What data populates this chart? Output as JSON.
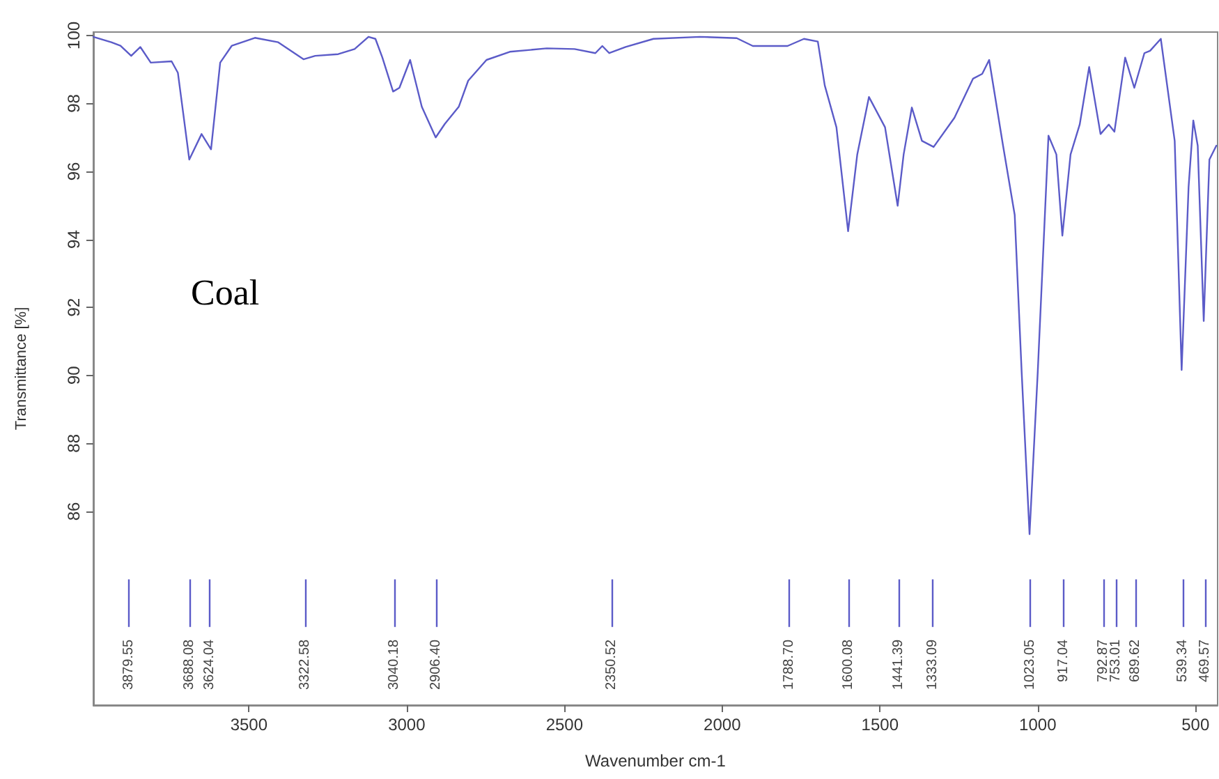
{
  "chart_data": {
    "type": "line",
    "xlabel": "Wavenumber cm-1",
    "ylabel": "Transmittance [%]",
    "xlim": [
      3993,
      430
    ],
    "ylim": [
      80.3,
      100.1
    ],
    "xticks": [
      3500,
      3000,
      2500,
      2000,
      1500,
      1000,
      500
    ],
    "yticks": [
      86,
      88,
      90,
      92,
      94,
      96,
      98,
      100
    ],
    "grid": false,
    "marker": "none",
    "line_style": "solid",
    "series": [
      {
        "color": "#5b5bc8",
        "x": [
          3993,
          3936,
          3907,
          3873,
          3844,
          3811,
          3745,
          3725,
          3708,
          3689,
          3650,
          3620,
          3591,
          3554,
          3481,
          3407,
          3327,
          3290,
          3217,
          3165,
          3121,
          3099,
          3077,
          3043,
          3023,
          2989,
          2952,
          2908,
          2879,
          2835,
          2805,
          2747,
          2673,
          2556,
          2468,
          2402,
          2380,
          2358,
          2306,
          2218,
          2071,
          1954,
          1903,
          1793,
          1741,
          1697,
          1675,
          1638,
          1601,
          1572,
          1535,
          1484,
          1444,
          1425,
          1399,
          1367,
          1330,
          1264,
          1205,
          1176,
          1154,
          1110,
          1073,
          1051,
          1026,
          1000,
          966,
          941,
          922,
          896,
          867,
          837,
          801,
          775,
          757,
          723,
          694,
          662,
          644,
          610,
          566,
          544,
          522,
          507,
          493,
          474,
          456,
          434
        ],
        "values": [
          99.96,
          99.8,
          99.7,
          99.4,
          99.66,
          99.2,
          99.24,
          98.9,
          97.7,
          96.35,
          97.1,
          96.65,
          99.2,
          99.7,
          99.93,
          99.8,
          99.3,
          99.4,
          99.45,
          99.6,
          99.96,
          99.9,
          99.35,
          98.35,
          98.46,
          99.28,
          97.9,
          97.0,
          97.4,
          97.9,
          98.67,
          99.28,
          99.52,
          99.62,
          99.6,
          99.48,
          99.69,
          99.48,
          99.66,
          99.9,
          99.96,
          99.92,
          99.69,
          99.69,
          99.9,
          99.82,
          98.53,
          97.3,
          94.24,
          96.5,
          98.19,
          97.3,
          94.99,
          96.5,
          97.88,
          96.9,
          96.72,
          97.58,
          98.73,
          98.87,
          99.28,
          96.76,
          94.72,
          90.1,
          85.33,
          90.1,
          97.05,
          96.5,
          94.11,
          96.5,
          97.38,
          99.07,
          97.1,
          97.38,
          97.17,
          99.35,
          98.46,
          99.48,
          99.55,
          99.9,
          96.9,
          90.16,
          95.54,
          97.5,
          96.76,
          91.6,
          96.35,
          96.76
        ]
      }
    ],
    "annotations": [
      "Coal"
    ],
    "ref_lines": [
      {
        "axis": "x",
        "value": 3879.55,
        "label": "3879.55",
        "color": "#5b5bc8"
      },
      {
        "axis": "x",
        "value": 3688.08,
        "label": "3688.08",
        "color": "#5b5bc8"
      },
      {
        "axis": "x",
        "value": 3624.04,
        "label": "3624.04",
        "color": "#5b5bc8"
      },
      {
        "axis": "x",
        "value": 3322.58,
        "label": "3322.58",
        "color": "#5b5bc8"
      },
      {
        "axis": "x",
        "value": 3040.18,
        "label": "3040.18",
        "color": "#5b5bc8"
      },
      {
        "axis": "x",
        "value": 2906.4,
        "label": "2906.40",
        "color": "#5b5bc8"
      },
      {
        "axis": "x",
        "value": 2350.52,
        "label": "2350.52",
        "color": "#5b5bc8"
      },
      {
        "axis": "x",
        "value": 1788.7,
        "label": "1788.70",
        "color": "#5b5bc8"
      },
      {
        "axis": "x",
        "value": 1600.08,
        "label": "1600.08",
        "color": "#5b5bc8"
      },
      {
        "axis": "x",
        "value": 1441.39,
        "label": "1441.39",
        "color": "#5b5bc8"
      },
      {
        "axis": "x",
        "value": 1333.09,
        "label": "1333.09",
        "color": "#5b5bc8"
      },
      {
        "axis": "x",
        "value": 1023.05,
        "label": "1023.05",
        "color": "#5b5bc8"
      },
      {
        "axis": "x",
        "value": 917.04,
        "label": "917.04",
        "color": "#5b5bc8"
      },
      {
        "axis": "x",
        "value": 792.87,
        "label": "792.87",
        "color": "#5b5bc8"
      },
      {
        "axis": "x",
        "value": 753.01,
        "label": "753.01",
        "color": "#5b5bc8"
      },
      {
        "axis": "x",
        "value": 689.62,
        "label": "689.62",
        "color": "#5b5bc8"
      },
      {
        "axis": "x",
        "value": 539.34,
        "label": "539.34",
        "color": "#5b5bc8"
      },
      {
        "axis": "x",
        "value": 469.57,
        "label": "469.57",
        "color": "#5b5bc8"
      }
    ]
  }
}
